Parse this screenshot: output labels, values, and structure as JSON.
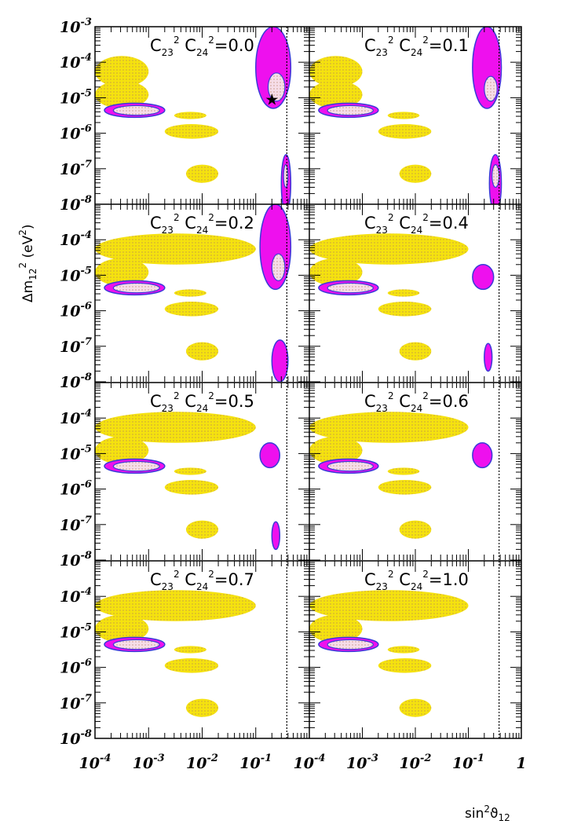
{
  "chart_data": {
    "type": "contour",
    "x_scale": "log",
    "y_scale": "log",
    "xlim": [
      0.0001,
      1
    ],
    "ylim": [
      1e-08,
      0.001
    ],
    "x_tick_labels": [
      {
        "base": "10",
        "exp": "-4"
      },
      {
        "base": "10",
        "exp": "-3"
      },
      {
        "base": "10",
        "exp": "-2"
      },
      {
        "base": "10",
        "exp": "-1"
      },
      {
        "base": "1",
        "exp": ""
      }
    ],
    "y_tick_labels": [
      {
        "base": "10",
        "exp": "-3"
      },
      {
        "base": "10",
        "exp": "-4"
      },
      {
        "base": "10",
        "exp": "-5"
      },
      {
        "base": "10",
        "exp": "-6"
      },
      {
        "base": "10",
        "exp": "-7"
      },
      {
        "base": "10",
        "exp": "-8"
      }
    ],
    "xlabel": {
      "text": "sin",
      "sup": "2",
      "mid": "ϑ",
      "sub": "12"
    },
    "ylabel": {
      "text": "Δm",
      "sub": "12",
      "sup": "2",
      "unit": "(eV",
      "unit_sup": "2",
      "unit_end": ")"
    },
    "vertical_line_x": 0.38,
    "best_fit": {
      "x": 0.2,
      "y": 9e-06,
      "panel": 0
    },
    "colors": {
      "yellow": "#f5e20f",
      "magenta": "#ee10ee",
      "inner": "#f6dde8",
      "outline": "#3a3ad8",
      "dots": "#b07a5e"
    },
    "panels": [
      {
        "c": "0.0",
        "yellow": [
          [
            0.0001,
            0.001,
            2e-05,
            0.00015
          ],
          [
            0.0001,
            0.001,
            5e-06,
            3e-05
          ],
          [
            0.003,
            0.012,
            2.5e-06,
            4e-06
          ],
          [
            0.002,
            0.02,
            7e-07,
            1.8e-06
          ],
          [
            0.005,
            0.02,
            4e-08,
            1.3e-07
          ]
        ],
        "magenta": [
          [
            0.1,
            0.45,
            5e-06,
            0.001
          ],
          [
            0.3,
            0.45,
            6e-09,
            2.5e-07
          ],
          [
            0.00015,
            0.002,
            2.8e-06,
            7e-06
          ]
        ],
        "inner": [
          [
            0.17,
            0.35,
            8e-06,
            5e-05
          ],
          [
            0.33,
            0.4,
            3e-08,
            1.3e-07
          ],
          [
            0.00022,
            0.0016,
            3.2e-06,
            6e-06
          ]
        ]
      },
      {
        "c": "0.1",
        "yellow": [
          [
            0.0001,
            0.001,
            2e-05,
            0.00015
          ],
          [
            0.0001,
            0.001,
            5e-06,
            3e-05
          ],
          [
            0.003,
            0.012,
            2.5e-06,
            4e-06
          ],
          [
            0.002,
            0.02,
            7e-07,
            1.8e-06
          ],
          [
            0.005,
            0.02,
            4e-08,
            1.3e-07
          ]
        ],
        "magenta": [
          [
            0.12,
            0.42,
            5e-06,
            0.001
          ],
          [
            0.25,
            0.42,
            6e-09,
            2.5e-07
          ],
          [
            0.00015,
            0.002,
            2.8e-06,
            7e-06
          ]
        ],
        "inner": [
          [
            0.2,
            0.35,
            8e-06,
            4e-05
          ],
          [
            0.28,
            0.38,
            3e-08,
            1.3e-07
          ],
          [
            0.00022,
            0.0016,
            3.2e-06,
            6e-06
          ]
        ]
      },
      {
        "c": "0.2",
        "yellow": [
          [
            0.0001,
            0.1,
            2e-05,
            0.00015
          ],
          [
            0.0001,
            0.001,
            5e-06,
            3e-05
          ],
          [
            0.003,
            0.012,
            2.5e-06,
            4e-06
          ],
          [
            0.002,
            0.02,
            7e-07,
            1.8e-06
          ],
          [
            0.005,
            0.02,
            4e-08,
            1.3e-07
          ]
        ],
        "magenta": [
          [
            0.12,
            0.45,
            4e-06,
            0.001
          ],
          [
            0.2,
            0.4,
            1e-08,
            1.5e-07
          ],
          [
            0.00015,
            0.002,
            2.8e-06,
            7e-06
          ]
        ],
        "inner": [
          [
            0.2,
            0.35,
            7e-06,
            4e-05
          ],
          [
            0.00022,
            0.0016,
            3.2e-06,
            6e-06
          ]
        ]
      },
      {
        "c": "0.4",
        "yellow": [
          [
            0.0001,
            0.1,
            2e-05,
            0.00015
          ],
          [
            0.0001,
            0.001,
            5e-06,
            3e-05
          ],
          [
            0.003,
            0.012,
            2.5e-06,
            4e-06
          ],
          [
            0.002,
            0.02,
            7e-07,
            1.8e-06
          ],
          [
            0.005,
            0.02,
            4e-08,
            1.3e-07
          ]
        ],
        "magenta": [
          [
            0.12,
            0.3,
            4e-06,
            2e-05
          ],
          [
            0.2,
            0.28,
            2e-08,
            1.2e-07
          ],
          [
            0.00015,
            0.002,
            2.8e-06,
            7e-06
          ]
        ],
        "inner": [
          [
            0.00022,
            0.0016,
            3.2e-06,
            6e-06
          ]
        ]
      },
      {
        "c": "0.5",
        "yellow": [
          [
            0.0001,
            0.1,
            2e-05,
            0.00015
          ],
          [
            0.0001,
            0.001,
            5e-06,
            3e-05
          ],
          [
            0.003,
            0.012,
            2.5e-06,
            4e-06
          ],
          [
            0.002,
            0.02,
            7e-07,
            1.8e-06
          ],
          [
            0.005,
            0.02,
            4e-08,
            1.3e-07
          ]
        ],
        "magenta": [
          [
            0.12,
            0.28,
            4e-06,
            2e-05
          ],
          [
            0.2,
            0.28,
            2e-08,
            1.2e-07
          ],
          [
            0.00015,
            0.002,
            2.8e-06,
            7e-06
          ]
        ],
        "inner": [
          [
            0.00022,
            0.0016,
            3.2e-06,
            6e-06
          ]
        ]
      },
      {
        "c": "0.6",
        "yellow": [
          [
            0.0001,
            0.1,
            2e-05,
            0.00015
          ],
          [
            0.0001,
            0.001,
            5e-06,
            3e-05
          ],
          [
            0.003,
            0.012,
            2.5e-06,
            4e-06
          ],
          [
            0.002,
            0.02,
            7e-07,
            1.8e-06
          ],
          [
            0.005,
            0.02,
            4e-08,
            1.3e-07
          ]
        ],
        "magenta": [
          [
            0.12,
            0.28,
            4e-06,
            2e-05
          ],
          [
            0.00015,
            0.002,
            2.8e-06,
            7e-06
          ]
        ],
        "inner": [
          [
            0.00022,
            0.0016,
            3.2e-06,
            6e-06
          ]
        ]
      },
      {
        "c": "0.7",
        "yellow": [
          [
            0.0001,
            0.1,
            2e-05,
            0.00015
          ],
          [
            0.0001,
            0.001,
            5e-06,
            3e-05
          ],
          [
            0.003,
            0.012,
            2.5e-06,
            4e-06
          ],
          [
            0.002,
            0.02,
            7e-07,
            1.8e-06
          ],
          [
            0.005,
            0.02,
            4e-08,
            1.3e-07
          ]
        ],
        "magenta": [
          [
            0.00015,
            0.002,
            2.8e-06,
            7e-06
          ]
        ],
        "inner": [
          [
            0.00022,
            0.0016,
            3.2e-06,
            6e-06
          ]
        ]
      },
      {
        "c": "1.0",
        "yellow": [
          [
            0.0001,
            0.1,
            2e-05,
            0.00015
          ],
          [
            0.0001,
            0.001,
            5e-06,
            3e-05
          ],
          [
            0.003,
            0.012,
            2.5e-06,
            4e-06
          ],
          [
            0.002,
            0.02,
            7e-07,
            1.8e-06
          ],
          [
            0.005,
            0.02,
            4e-08,
            1.3e-07
          ]
        ],
        "magenta": [
          [
            0.00015,
            0.002,
            2.8e-06,
            7e-06
          ]
        ],
        "inner": [
          [
            0.00022,
            0.0016,
            3.2e-06,
            6e-06
          ]
        ]
      }
    ]
  }
}
